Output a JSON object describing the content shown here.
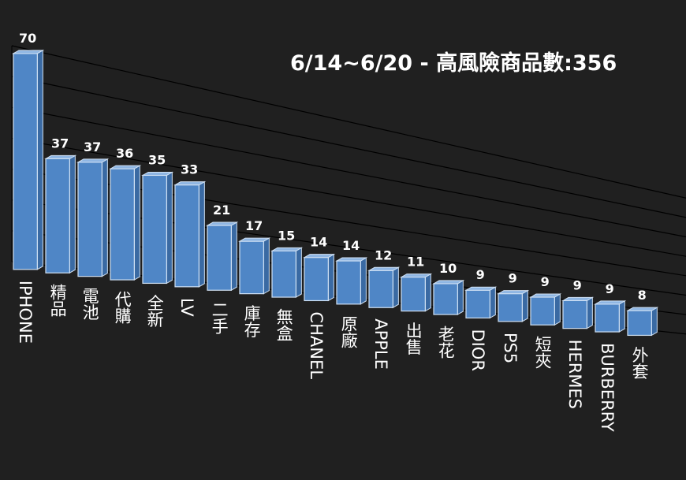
{
  "chart_data": {
    "type": "bar",
    "title": "6/14~6/20 - 高風險商品數:356",
    "categories": [
      "IPHONE",
      "精品",
      "電池",
      "代購",
      "全新",
      "LV",
      "二手",
      "庫存",
      "無盒",
      "CHANEL",
      "原廠",
      "APPLE",
      "出售",
      "老花",
      "DIOR",
      "PS5",
      "短夾",
      "HERMES",
      "BURBERRY",
      "外套"
    ],
    "values": [
      70,
      37,
      37,
      36,
      35,
      33,
      21,
      17,
      15,
      14,
      14,
      12,
      11,
      10,
      9,
      9,
      9,
      9,
      9,
      8
    ],
    "data_labels": [
      "70",
      "37",
      "37",
      "36",
      "35",
      "33",
      "21",
      "17",
      "15",
      "14",
      "14",
      "12",
      "11",
      "10",
      "9",
      "9",
      "9",
      "9",
      "9",
      "8"
    ],
    "ylim": [
      0,
      70
    ],
    "grid": true,
    "legend": "none",
    "colors": {
      "background": "#202020",
      "bar": "#4f86c6",
      "bar_edge": "#cfe0f3",
      "gridline": "#000000",
      "text": "#ffffff"
    }
  }
}
